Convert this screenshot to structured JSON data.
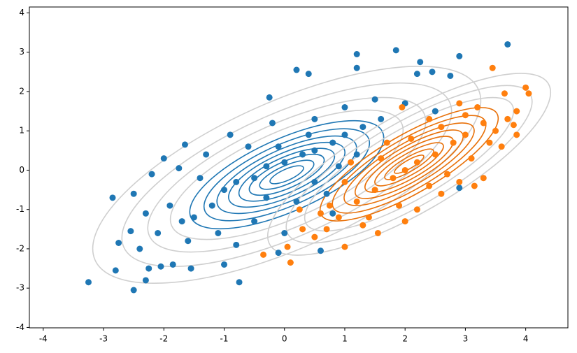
{
  "chart_data": {
    "type": "scatter",
    "xlim": [
      -4.23,
      4.7
    ],
    "ylim": [
      -4.01,
      4.15
    ],
    "xticks": [
      -4,
      -3,
      -2,
      -1,
      0,
      1,
      2,
      3,
      4
    ],
    "yticks": [
      -4,
      -3,
      -2,
      -1,
      0,
      1,
      2,
      3,
      4
    ],
    "series": [
      {
        "color": "#1f77b4",
        "x": [
          -3.25,
          -2.85,
          -2.8,
          -2.75,
          -2.5,
          -2.5,
          -2.55,
          -2.4,
          -2.3,
          -2.25,
          -2.2,
          -2.0,
          -1.65,
          -1.75,
          -0.75,
          -0.25,
          0.2,
          0.4,
          1.2,
          1.85,
          1.2,
          2.25,
          2.9,
          3.7,
          2.45,
          2.2,
          2.75,
          0.6,
          -0.1,
          -1.55,
          -1.85,
          -2.05,
          -1.0,
          0.8,
          2.9,
          -1.5,
          -1.2,
          -1.0,
          -0.8,
          -0.5,
          -0.3,
          0,
          0.3,
          0.5,
          0.8,
          1.0,
          1.3,
          1.6,
          -0.6,
          -0.9,
          -1.3,
          -1.9,
          -2.1,
          -1.6,
          -1.1,
          -0.5,
          0.2,
          0.5,
          0.9,
          1.2,
          -0.2,
          0.5,
          1.0,
          -1.4,
          -2.3,
          -0.8,
          0.0,
          0.4,
          -0.1,
          1.5,
          -1.7,
          -0.3,
          0.7,
          2.0,
          2.5
        ],
        "values": [
          -2.85,
          -0.7,
          -2.55,
          -1.85,
          -3.05,
          -0.6,
          -1.55,
          -2.0,
          -2.8,
          -2.5,
          -0.1,
          0.3,
          0.65,
          0.05,
          -2.85,
          1.85,
          2.55,
          2.45,
          2.95,
          3.05,
          2.6,
          2.75,
          2.9,
          3.2,
          2.5,
          2.45,
          2.4,
          -2.05,
          -2.1,
          -2.5,
          -2.4,
          -2.45,
          -2.4,
          -1.1,
          -0.45,
          -1.2,
          -0.9,
          -0.5,
          -0.3,
          -0.2,
          0.1,
          0.2,
          0.4,
          0.5,
          0.7,
          0.9,
          1.1,
          1.3,
          0.6,
          0.9,
          0.4,
          -0.9,
          -1.6,
          -1.8,
          -1.6,
          -1.3,
          -0.8,
          -0.3,
          0.1,
          0.4,
          1.2,
          1.3,
          1.6,
          -0.2,
          -1.1,
          -1.9,
          -1.6,
          0.9,
          0.6,
          1.8,
          -1.3,
          -0.7,
          -0.6,
          1.7,
          1.5
        ]
      },
      {
        "color": "#ff7f0e",
        "x": [
          3.45,
          4.0,
          4.05,
          3.65,
          2.9,
          1.95,
          -0.35,
          0.1,
          0.05,
          1.0,
          1.55,
          0.25,
          3.15,
          3.85,
          3.6,
          3.8,
          3.85,
          0.3,
          0.6,
          0.75,
          1.5,
          1.8,
          2.0,
          2.2,
          2.5,
          2.8,
          3.0,
          3.3,
          1.2,
          0.9,
          1.4,
          1.9,
          2.4,
          2.7,
          3.1,
          3.4,
          1.6,
          2.1,
          2.6,
          3.0,
          1.0,
          0.7,
          1.3,
          2.2,
          2.9,
          3.5,
          1.7,
          2.4,
          3.2,
          1.1,
          0.5,
          2.0,
          3.7,
          3.3,
          2.6
        ],
        "values": [
          2.6,
          2.1,
          1.95,
          1.95,
          1.7,
          1.6,
          -2.15,
          -2.35,
          -1.95,
          -1.95,
          -1.6,
          -1.0,
          -0.4,
          0.9,
          0.6,
          1.15,
          1.5,
          -1.5,
          -1.1,
          -0.9,
          -0.5,
          -0.2,
          0.0,
          0.2,
          0.4,
          0.7,
          0.9,
          1.2,
          -0.8,
          -1.2,
          -1.2,
          -0.9,
          -0.4,
          -0.1,
          0.3,
          0.7,
          0.3,
          0.8,
          1.1,
          1.4,
          -0.3,
          -1.5,
          -1.4,
          -1.0,
          -0.3,
          1.0,
          0.7,
          1.3,
          1.6,
          0.2,
          -1.7,
          -1.3,
          1.3,
          -0.2,
          -0.6
        ]
      }
    ]
  }
}
